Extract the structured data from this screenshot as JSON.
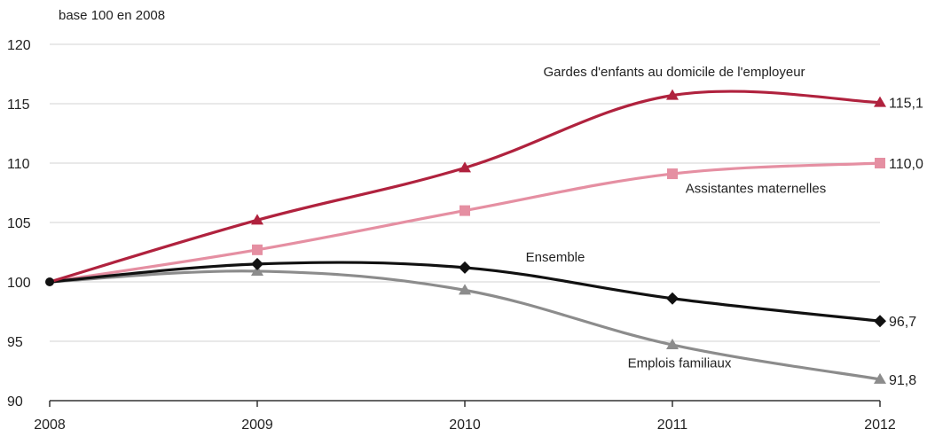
{
  "chart_data": {
    "type": "line",
    "ylabel": "base 100 en 2008",
    "x": [
      "2008",
      "2009",
      "2010",
      "2011",
      "2012"
    ],
    "ylim": [
      90,
      120
    ],
    "yticks": [
      "90",
      "95",
      "100",
      "105",
      "110",
      "115",
      "120"
    ],
    "grid": "horizontal",
    "series": [
      {
        "name": "Gardes d'enfants au domicile de l'employeur",
        "values": [
          100,
          105.2,
          109.6,
          115.7,
          115.1
        ],
        "color": "#b0223e",
        "marker": "triangle",
        "end_label": "115,1"
      },
      {
        "name": "Assistantes maternelles",
        "values": [
          100,
          102.7,
          106.0,
          109.1,
          110.0
        ],
        "color": "#e58fa2",
        "marker": "square",
        "end_label": "110,0"
      },
      {
        "name": "Ensemble",
        "values": [
          100,
          101.5,
          101.2,
          98.6,
          96.7
        ],
        "color": "#111111",
        "marker": "diamond",
        "end_label": "96,7"
      },
      {
        "name": "Emplois familiaux",
        "values": [
          100,
          100.9,
          99.3,
          94.7,
          91.8
        ],
        "color": "#8c8c8c",
        "marker": "triangle",
        "end_label": "91,8"
      }
    ]
  }
}
